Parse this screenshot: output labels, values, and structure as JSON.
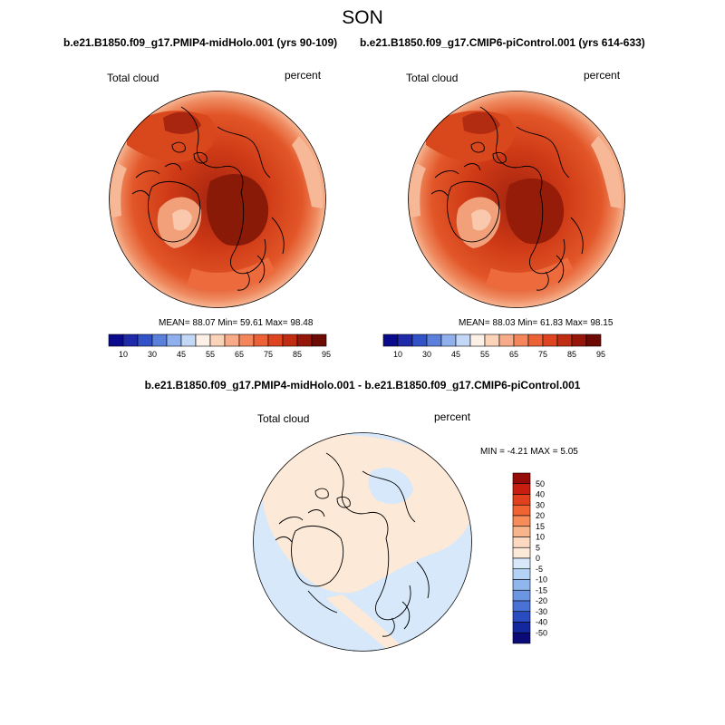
{
  "figure": {
    "season": "SON",
    "diff_title": "b.e21.B1850.f09_g17.PMIP4-midHolo.001 - b.e21.B1850.f09_g17.CMIP6-piControl.001"
  },
  "panels": [
    {
      "title": "b.e21.B1850.f09_g17.PMIP4-midHolo.001 (yrs 90-109)",
      "variable": "Total cloud",
      "units": "percent",
      "stats": "MEAN=  88.07  Min=  59.61  Max=  98.48"
    },
    {
      "title": "b.e21.B1850.f09_g17.CMIP6-piControl.001 (yrs 614-633)",
      "variable": "Total cloud",
      "units": "percent",
      "stats": "MEAN=  88.03  Min=  61.83  Max=  98.15"
    },
    {
      "variable": "Total cloud",
      "units": "percent",
      "stats": "MIN =  -4.21 MAX =   5.05"
    }
  ],
  "chart_data": [
    {
      "type": "heatmap",
      "projection": "north polar stereographic",
      "mean": 88.07,
      "min": 59.61,
      "max": 98.48,
      "colorbar": {
        "ticks": [
          "10",
          "30",
          "45",
          "55",
          "65",
          "75",
          "85",
          "95"
        ],
        "colors": [
          "#0a0a8c",
          "#1e2aa8",
          "#3253c8",
          "#5a80dc",
          "#8fb0ec",
          "#c3d8f6",
          "#fdf0e6",
          "#fbd3b8",
          "#f8ab88",
          "#f5865c",
          "#ec6236",
          "#df4420",
          "#c02d12",
          "#96160a",
          "#6e0a04"
        ]
      }
    },
    {
      "type": "heatmap",
      "projection": "north polar stereographic",
      "mean": 88.03,
      "min": 61.83,
      "max": 98.15,
      "colorbar": {
        "ticks": [
          "10",
          "30",
          "45",
          "55",
          "65",
          "75",
          "85",
          "95"
        ],
        "colors": [
          "#0a0a8c",
          "#1e2aa8",
          "#3253c8",
          "#5a80dc",
          "#8fb0ec",
          "#c3d8f6",
          "#fdf0e6",
          "#fbd3b8",
          "#f8ab88",
          "#f5865c",
          "#ec6236",
          "#df4420",
          "#c02d12",
          "#96160a",
          "#6e0a04"
        ]
      }
    },
    {
      "type": "heatmap",
      "projection": "north polar stereographic",
      "min": -4.21,
      "max": 5.05,
      "colorbar": {
        "ticks": [
          "50",
          "40",
          "30",
          "20",
          "15",
          "10",
          "5",
          "0",
          "-5",
          "-10",
          "-15",
          "-20",
          "-30",
          "-40",
          "-50"
        ],
        "colors": [
          "#960a0a",
          "#c81e12",
          "#e0401e",
          "#ef6432",
          "#f58c5a",
          "#f9b48c",
          "#fcd9c0",
          "#fde9d7",
          "#d6e8fa",
          "#b4d2f5",
          "#90b6ee",
          "#6c96e4",
          "#4a72d6",
          "#2a4cc0",
          "#14289e",
          "#0a0a78"
        ]
      }
    }
  ]
}
